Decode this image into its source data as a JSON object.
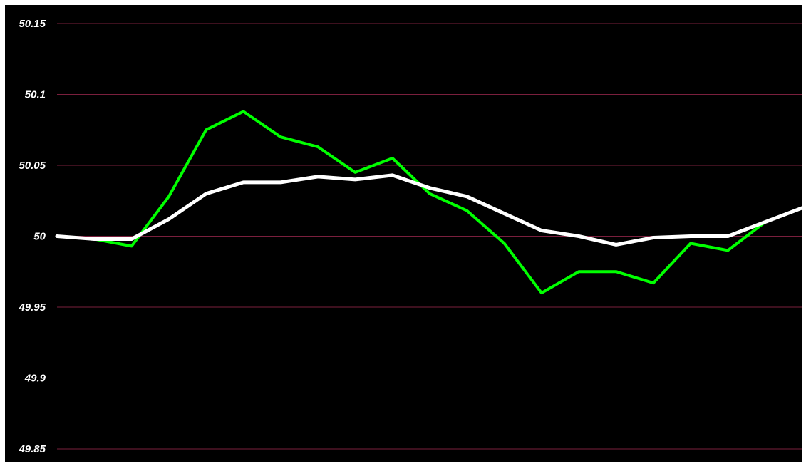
{
  "chart_data": {
    "type": "line",
    "title": "",
    "xlabel": "",
    "ylabel": "",
    "ylim": [
      49.85,
      50.15
    ],
    "yticks": [
      50.15,
      50.1,
      50.05,
      50,
      49.95,
      49.9,
      49.85
    ],
    "ytick_labels": [
      "50.15",
      "50.1",
      "50.05",
      "50",
      "49.95",
      "49.9",
      "49.85"
    ],
    "grid": true,
    "legend": "none",
    "x": [
      0,
      5,
      10,
      15,
      20,
      25,
      30,
      35,
      40,
      45,
      50,
      55,
      60,
      65,
      70,
      75,
      80,
      85,
      90,
      95,
      100
    ],
    "series": [
      {
        "values": [
          50.0,
          49.998,
          49.993,
          50.028,
          50.075,
          50.088,
          50.07,
          50.063,
          50.045,
          50.055,
          50.03,
          50.018,
          49.995,
          49.96,
          49.975,
          49.975,
          49.967,
          49.995,
          49.99,
          50.01,
          50.02
        ],
        "color": "#00ff00"
      },
      {
        "values": [
          50.0,
          49.998,
          49.998,
          50.012,
          50.03,
          50.038,
          50.038,
          50.042,
          50.04,
          50.043,
          50.034,
          50.028,
          50.016,
          50.004,
          50.0,
          49.994,
          49.999,
          50.0,
          50.0,
          50.01,
          50.02
        ],
        "color": "#ffffff"
      }
    ],
    "background": "#000000",
    "gridline_color": "#7a1f3d"
  }
}
